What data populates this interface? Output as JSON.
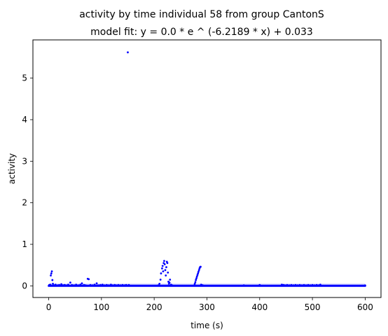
{
  "chart_data": {
    "type": "scatter",
    "title": "activity by time individual 58 from group CantonS",
    "subtitle": "model fit: y = 0.0 * e ^ (-6.2189 * x) + 0.033",
    "xlabel": "time (s)",
    "ylabel": "activity",
    "xlim": [
      -29.9,
      630
    ],
    "ylim": [
      -0.28,
      5.92
    ],
    "xticks": [
      0,
      100,
      200,
      300,
      400,
      500,
      600
    ],
    "yticks": [
      0,
      1,
      2,
      3,
      4,
      5
    ],
    "grid": false,
    "legend": "none",
    "colors": {
      "points": "#0000ff",
      "fit": "#0000ff",
      "fit_alpha": 0.4
    },
    "fit": {
      "a": 0.0,
      "b": -6.2189,
      "c": 0.033
    },
    "baseline": 0.0,
    "points": [
      [
        1,
        0.02
      ],
      [
        3,
        0.03
      ],
      [
        4,
        0.25
      ],
      [
        5,
        0.3
      ],
      [
        6,
        0.35
      ],
      [
        7,
        0.14
      ],
      [
        8,
        0.05
      ],
      [
        10,
        0.01
      ],
      [
        13,
        0.03
      ],
      [
        17,
        0.01
      ],
      [
        20,
        0.02
      ],
      [
        24,
        0.04
      ],
      [
        27,
        0.01
      ],
      [
        30,
        0.02
      ],
      [
        33,
        0.01
      ],
      [
        37,
        0.03
      ],
      [
        41,
        0.08
      ],
      [
        44,
        0.02
      ],
      [
        48,
        0.01
      ],
      [
        52,
        0.03
      ],
      [
        56,
        0.01
      ],
      [
        60,
        0.03
      ],
      [
        63,
        0.06
      ],
      [
        67,
        0.02
      ],
      [
        70,
        0.01
      ],
      [
        74,
        0.17
      ],
      [
        76,
        0.16
      ],
      [
        79,
        0.02
      ],
      [
        83,
        0.01
      ],
      [
        87,
        0.03
      ],
      [
        91,
        0.06
      ],
      [
        94,
        0.01
      ],
      [
        98,
        0.02
      ],
      [
        102,
        0.03
      ],
      [
        106,
        0.01
      ],
      [
        110,
        0.02
      ],
      [
        114,
        0.01
      ],
      [
        118,
        0.03
      ],
      [
        121,
        0.01
      ],
      [
        125,
        0.02
      ],
      [
        128,
        0.01
      ],
      [
        132,
        0.02
      ],
      [
        136,
        0.01
      ],
      [
        140,
        0.02
      ],
      [
        144,
        0.01
      ],
      [
        147,
        0.02
      ],
      [
        150,
        5.62
      ],
      [
        152,
        0.02
      ],
      [
        208,
        0.01
      ],
      [
        210,
        0.05
      ],
      [
        212,
        0.15
      ],
      [
        213,
        0.3
      ],
      [
        215,
        0.42
      ],
      [
        216,
        0.48
      ],
      [
        217,
        0.35
      ],
      [
        218,
        0.55
      ],
      [
        219,
        0.6
      ],
      [
        220,
        0.52
      ],
      [
        221,
        0.38
      ],
      [
        222,
        0.25
      ],
      [
        223,
        0.45
      ],
      [
        224,
        0.58
      ],
      [
        225,
        0.55
      ],
      [
        226,
        0.32
      ],
      [
        227,
        0.1
      ],
      [
        228,
        0.05
      ],
      [
        229,
        0.08
      ],
      [
        230,
        0.15
      ],
      [
        232,
        0.03
      ],
      [
        234,
        0.01
      ],
      [
        276,
        0.01
      ],
      [
        277,
        0.05
      ],
      [
        278,
        0.09
      ],
      [
        279,
        0.14
      ],
      [
        280,
        0.18
      ],
      [
        281,
        0.22
      ],
      [
        282,
        0.26
      ],
      [
        283,
        0.3
      ],
      [
        284,
        0.34
      ],
      [
        285,
        0.38
      ],
      [
        286,
        0.42
      ],
      [
        287,
        0.45
      ],
      [
        288,
        0.46
      ],
      [
        289,
        0.03
      ],
      [
        290,
        0.02
      ],
      [
        292,
        0.01
      ],
      [
        370,
        0.01
      ],
      [
        400,
        0.02
      ],
      [
        442,
        0.03
      ],
      [
        445,
        0.02
      ],
      [
        448,
        0.01
      ],
      [
        452,
        0.02
      ],
      [
        456,
        0.01
      ],
      [
        460,
        0.02
      ],
      [
        464,
        0.01
      ],
      [
        468,
        0.02
      ],
      [
        472,
        0.01
      ],
      [
        476,
        0.02
      ],
      [
        480,
        0.01
      ],
      [
        484,
        0.02
      ],
      [
        488,
        0.01
      ],
      [
        492,
        0.02
      ],
      [
        496,
        0.01
      ],
      [
        500,
        0.02
      ],
      [
        504,
        0.01
      ],
      [
        508,
        0.02
      ],
      [
        512,
        0.01
      ],
      [
        515,
        0.03
      ],
      [
        600,
        0.01
      ]
    ]
  }
}
